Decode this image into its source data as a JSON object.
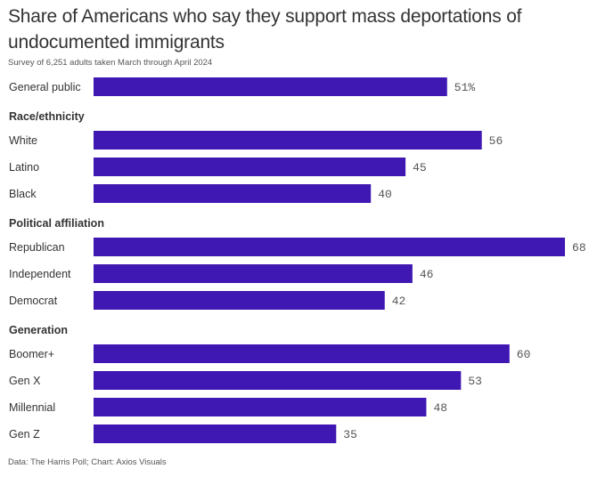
{
  "header": {
    "title": "Share of Americans who say they support mass deportations of undocumented immigrants",
    "subtitle": "Survey of 6,251 adults taken March through April 2024"
  },
  "footer": {
    "source": "Data: The Harris Poll; Chart: Axios Visuals"
  },
  "colors": {
    "bar": "#3f17b2",
    "text": "#333333",
    "value_text": "#555555"
  },
  "chart_data": {
    "type": "bar",
    "orientation": "horizontal",
    "title": "Share of Americans who say they support mass deportations of undocumented immigrants",
    "subtitle": "Survey of 6,251 adults taken March through April 2024",
    "xlabel": "",
    "ylabel": "",
    "xlim": [
      0,
      100
    ],
    "grid": false,
    "legend": "none",
    "unit_suffix_first": "%",
    "groups": [
      {
        "name": "",
        "items": [
          {
            "label": "General public",
            "value": 51,
            "display": "51%"
          }
        ]
      },
      {
        "name": "Race/ethnicity",
        "items": [
          {
            "label": "White",
            "value": 56,
            "display": "56"
          },
          {
            "label": "Latino",
            "value": 45,
            "display": "45"
          },
          {
            "label": "Black",
            "value": 40,
            "display": "40"
          }
        ]
      },
      {
        "name": "Political affiliation",
        "items": [
          {
            "label": "Republican",
            "value": 68,
            "display": "68"
          },
          {
            "label": "Independent",
            "value": 46,
            "display": "46"
          },
          {
            "label": "Democrat",
            "value": 42,
            "display": "42"
          }
        ]
      },
      {
        "name": "Generation",
        "items": [
          {
            "label": "Boomer+",
            "value": 60,
            "display": "60"
          },
          {
            "label": "Gen X",
            "value": 53,
            "display": "53"
          },
          {
            "label": "Millennial",
            "value": 48,
            "display": "48"
          },
          {
            "label": "Gen Z",
            "value": 35,
            "display": "35"
          }
        ]
      }
    ],
    "source": "Data: The Harris Poll; Chart: Axios Visuals"
  }
}
